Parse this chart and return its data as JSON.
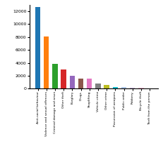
{
  "categories": [
    "Anti-social behaviour",
    "Violence and sexual offences",
    "Criminal damage and arson",
    "Other theft",
    "Burglary",
    "Drugs",
    "Shoplifting",
    "Vehicle crime",
    "Other crime",
    "Possession of weapons",
    "Public order",
    "Robbery",
    "Bicycle theft",
    "Theft from the person"
  ],
  "values": [
    12600,
    8100,
    3850,
    3000,
    1950,
    1600,
    1600,
    800,
    600,
    230,
    230,
    180,
    130,
    100
  ],
  "colors": [
    "#1f77b4",
    "#ff7f0e",
    "#2ca02c",
    "#d62728",
    "#9467bd",
    "#8c564b",
    "#e377c2",
    "#7f7f7f",
    "#bcbd22",
    "#17becf",
    "#aec7e8",
    "#c5b0d5",
    "#f7b6d2",
    "#98df8a"
  ],
  "ylim": [
    0,
    13000
  ],
  "yticks": [
    0,
    2000,
    4000,
    6000,
    8000,
    10000,
    12000
  ],
  "figsize": [
    2.31,
    2.18
  ],
  "dpi": 100
}
